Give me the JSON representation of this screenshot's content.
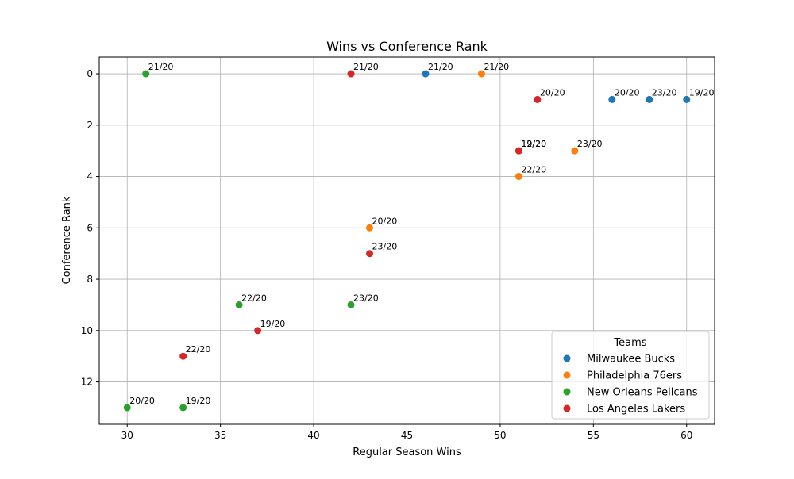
{
  "chart_data": {
    "type": "scatter",
    "title": "Wins vs Conference Rank",
    "xlabel": "Regular Season Wins",
    "ylabel": "Conference Rank",
    "xlim": [
      28.5,
      61.5
    ],
    "ylim": [
      13.65,
      -0.65
    ],
    "y_inverted": true,
    "xticks": [
      30,
      35,
      40,
      45,
      50,
      55,
      60
    ],
    "yticks": [
      0,
      2,
      4,
      6,
      8,
      10,
      12
    ],
    "grid": true,
    "legend_title": "Teams",
    "legend_position": "lower-right",
    "series": [
      {
        "name": "Milwaukee Bucks",
        "color": "#1f77b4",
        "points": [
          {
            "x": 60,
            "y": 1,
            "label": "19/20"
          },
          {
            "x": 56,
            "y": 1,
            "label": "20/20"
          },
          {
            "x": 46,
            "y": 0,
            "label": "21/20"
          },
          {
            "x": 58,
            "y": 1,
            "label": "23/20"
          }
        ]
      },
      {
        "name": "Philadelphia 76ers",
        "color": "#ff7f0e",
        "points": [
          {
            "x": 51,
            "y": 3,
            "label": "19/20"
          },
          {
            "x": 43,
            "y": 6,
            "label": "20/20"
          },
          {
            "x": 49,
            "y": 0,
            "label": "21/20"
          },
          {
            "x": 51,
            "y": 4,
            "label": "22/20"
          },
          {
            "x": 54,
            "y": 3,
            "label": "23/20"
          }
        ]
      },
      {
        "name": "New Orleans Pelicans",
        "color": "#2ca02c",
        "points": [
          {
            "x": 33,
            "y": 13,
            "label": "19/20"
          },
          {
            "x": 30,
            "y": 13,
            "label": "20/20"
          },
          {
            "x": 31,
            "y": 0,
            "label": "21/20"
          },
          {
            "x": 36,
            "y": 9,
            "label": "22/20"
          },
          {
            "x": 42,
            "y": 9,
            "label": "23/20"
          }
        ]
      },
      {
        "name": "Los Angeles Lakers",
        "color": "#d62728",
        "points": [
          {
            "x": 37,
            "y": 10,
            "label": "19/20"
          },
          {
            "x": 52,
            "y": 1,
            "label": "20/20"
          },
          {
            "x": 42,
            "y": 0,
            "label": "21/20"
          },
          {
            "x": 33,
            "y": 11,
            "label": "22/20"
          },
          {
            "x": 43,
            "y": 7,
            "label": "23/20"
          },
          {
            "x": 51,
            "y": 3,
            "label": "12/20"
          }
        ]
      }
    ]
  }
}
